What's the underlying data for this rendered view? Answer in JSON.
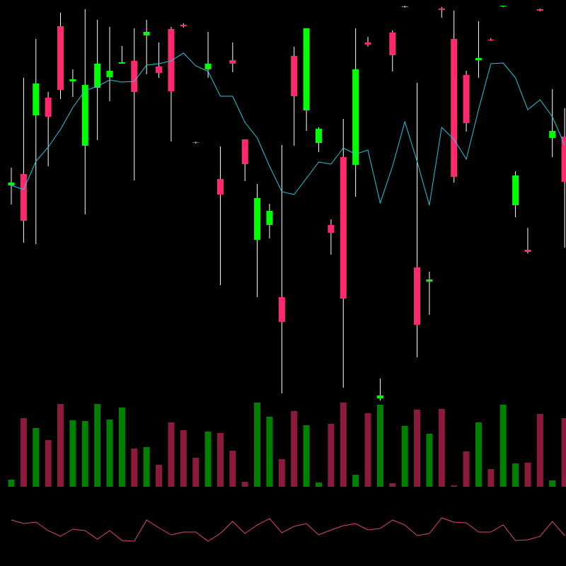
{
  "chart_data": {
    "type": "candlestick",
    "open": [
      538,
      554,
      637,
      662,
      763,
      685,
      594,
      676,
      691,
      710,
      714,
      750,
      706,
      759,
      765,
      599,
      702,
      547,
      715,
      603,
      461,
      482,
      380,
      721,
      644,
      598,
      482,
      578,
      567,
      740,
      237,
      754,
      790,
      422,
      402,
      788,
      745,
      694,
      715,
      744,
      791,
      510,
      447,
      787,
      605,
      607
    ],
    "high": [
      563,
      690,
      745,
      670,
      782,
      702,
      787,
      772,
      762,
      735,
      760,
      772,
      740,
      762,
      767,
      600,
      755,
      593,
      740,
      603,
      540,
      512,
      595,
      734,
      760,
      620,
      490,
      632,
      760,
      748,
      265,
      757,
      792,
      683,
      416,
      790,
      785,
      700,
      770,
      746,
      792,
      558,
      478,
      788,
      674,
      647
    ],
    "low": [
      511,
      457,
      455,
      565,
      660,
      663,
      497,
      602,
      657,
      710,
      545,
      695,
      690,
      600,
      761,
      597,
      690,
      397,
      698,
      544,
      380,
      463,
      244,
      594,
      615,
      585,
      440,
      252,
      522,
      734,
      234,
      699,
      789,
      295,
      355,
      775,
      542,
      614,
      690,
      742,
      790,
      493,
      442,
      784,
      578,
      450
    ],
    "close": [
      542,
      488,
      682,
      635,
      673,
      688,
      680,
      710,
      700,
      712,
      670,
      755,
      697,
      671,
      763,
      598,
      710,
      525,
      710,
      568,
      520,
      502,
      345,
      664,
      760,
      618,
      471,
      378,
      702,
      737,
      241,
      722,
      791,
      341,
      405,
      786,
      550,
      626,
      718,
      743,
      792,
      552,
      444,
      785,
      615,
      543
    ],
    "ylim": [
      0,
      800
    ],
    "up_color": "#00ff00",
    "down_color": "#ff2a6d",
    "wick_color": "#ffffff",
    "ma": [
      538,
      532,
      572,
      592,
      617,
      648,
      672,
      678,
      687,
      684,
      685,
      708,
      710,
      714,
      725,
      707,
      699,
      664,
      664,
      627,
      605,
      565,
      529,
      525,
      548,
      571,
      568,
      591,
      582,
      588,
      513,
      565,
      628,
      572,
      510,
      620,
      603,
      575,
      645,
      710,
      711,
      690,
      645,
      659,
      635,
      595
    ],
    "ma_color": "#20c8e0",
    "volume": [
      10,
      97,
      83,
      66,
      117,
      94,
      93,
      117,
      95,
      112,
      54,
      56,
      31,
      91,
      80,
      41,
      78,
      76,
      51,
      7,
      119,
      99,
      39,
      107,
      87,
      6,
      89,
      119,
      17,
      104,
      116,
      5,
      86,
      109,
      75,
      110,
      2,
      50,
      91,
      25,
      116,
      33,
      34,
      103,
      9,
      97
    ],
    "volume_ylim": [
      0,
      120
    ],
    "volume_up_color": "#008000",
    "volume_down_color": "#8b1a3c",
    "oscillator": [
      65,
      60,
      62,
      50,
      42,
      52,
      50,
      38,
      50,
      36,
      35,
      65,
      54,
      44,
      48,
      48,
      35,
      46,
      63,
      46,
      58,
      67,
      47,
      56,
      60,
      44,
      51,
      57,
      60,
      51,
      53,
      65,
      58,
      43,
      46,
      68,
      62,
      61,
      48,
      48,
      58,
      36,
      37,
      42,
      63,
      43
    ],
    "oscillator_ylim": [
      30,
      70
    ],
    "oscillator_color": "#e0408a"
  }
}
